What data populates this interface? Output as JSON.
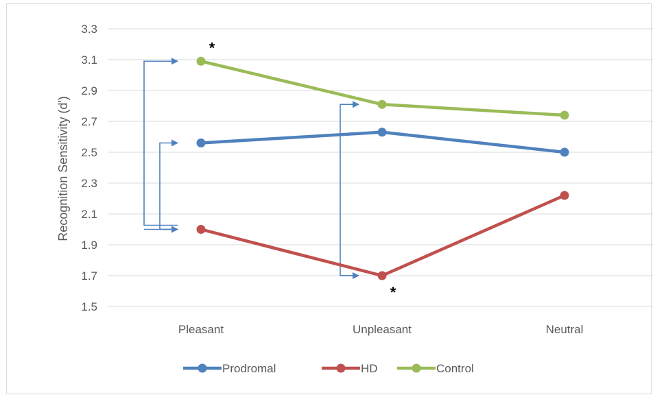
{
  "chart_data": {
    "type": "line",
    "title": "",
    "xlabel": "",
    "ylabel": "Recognition Sensitivity (d')",
    "categories": [
      "Pleasant",
      "Unpleasant",
      "Neutral"
    ],
    "ylim": [
      1.5,
      3.3
    ],
    "yticks": [
      "1.5",
      "1.7",
      "1.9",
      "2.1",
      "2.3",
      "2.5",
      "2.7",
      "2.9",
      "3.1",
      "3.3"
    ],
    "ytick_values": [
      1.5,
      1.7,
      1.9,
      2.1,
      2.3,
      2.5,
      2.7,
      2.9,
      3.1,
      3.3
    ],
    "grid": true,
    "legend_position": "bottom",
    "series": [
      {
        "name": "Prodromal",
        "values": [
          2.56,
          2.63,
          2.5
        ],
        "color": "#4f81bd"
      },
      {
        "name": "HD",
        "values": [
          2.0,
          1.7,
          2.22
        ],
        "color": "#c0504d"
      },
      {
        "name": "Control",
        "values": [
          3.09,
          2.81,
          2.74
        ],
        "color": "#9bbb59"
      }
    ],
    "annotations": [
      {
        "text": "*",
        "category": "Pleasant",
        "series": "Control"
      },
      {
        "text": "*",
        "category": "Unpleasant",
        "series": "HD"
      }
    ],
    "comparison_arrows": [
      {
        "category": "Pleasant",
        "from_series": "HD",
        "to_series": "Control",
        "color": "#4f81bd"
      },
      {
        "category": "Pleasant",
        "from_series": "HD",
        "to_series": "Prodromal",
        "color": "#4f81bd"
      },
      {
        "category": "Unpleasant",
        "from_series": "HD",
        "to_series": "Control",
        "color": "#4f81bd"
      }
    ]
  }
}
